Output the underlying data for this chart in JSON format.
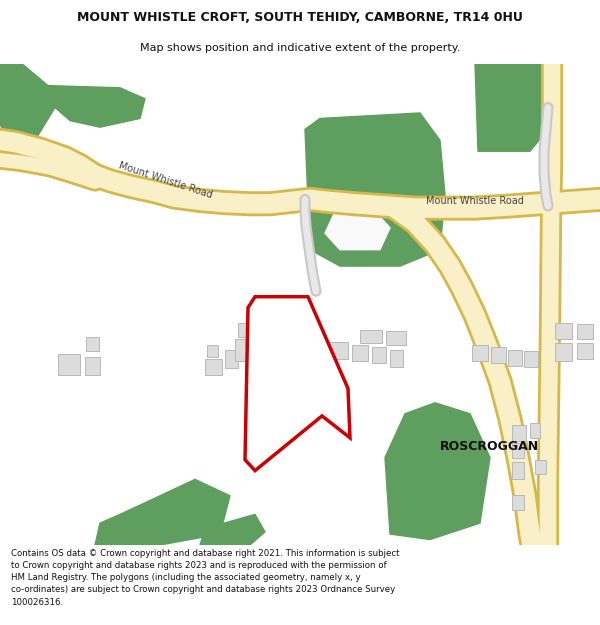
{
  "title": "MOUNT WHISTLE CROFT, SOUTH TEHIDY, CAMBORNE, TR14 0HU",
  "subtitle": "Map shows position and indicative extent of the property.",
  "footer": "Contains OS data © Crown copyright and database right 2021. This information is subject\nto Crown copyright and database rights 2023 and is reproduced with the permission of\nHM Land Registry. The polygons (including the associated geometry, namely x, y\nco-ordinates) are subject to Crown copyright and database rights 2023 Ordnance Survey\n100026316.",
  "bg_color": "#ffffff",
  "map_bg": "#f9f9f9",
  "road_fill": "#faf0c8",
  "road_border": "#d4b84a",
  "green_color": "#5e9e5e",
  "bld_fill": "#dcdcdc",
  "bld_border": "#b8b8b8",
  "grey_road_fill": "#e8e8e8",
  "grey_road_border": "#c8c8c8",
  "red_color": "#cc0000",
  "water_fill": "#cce4f0",
  "road_label_color": "#444444",
  "place_label_color": "#111111",
  "road_label1": "Mount Whistle Road",
  "road_label2": "Mount Whistle Road",
  "place_label": "ROSCROGGAN"
}
